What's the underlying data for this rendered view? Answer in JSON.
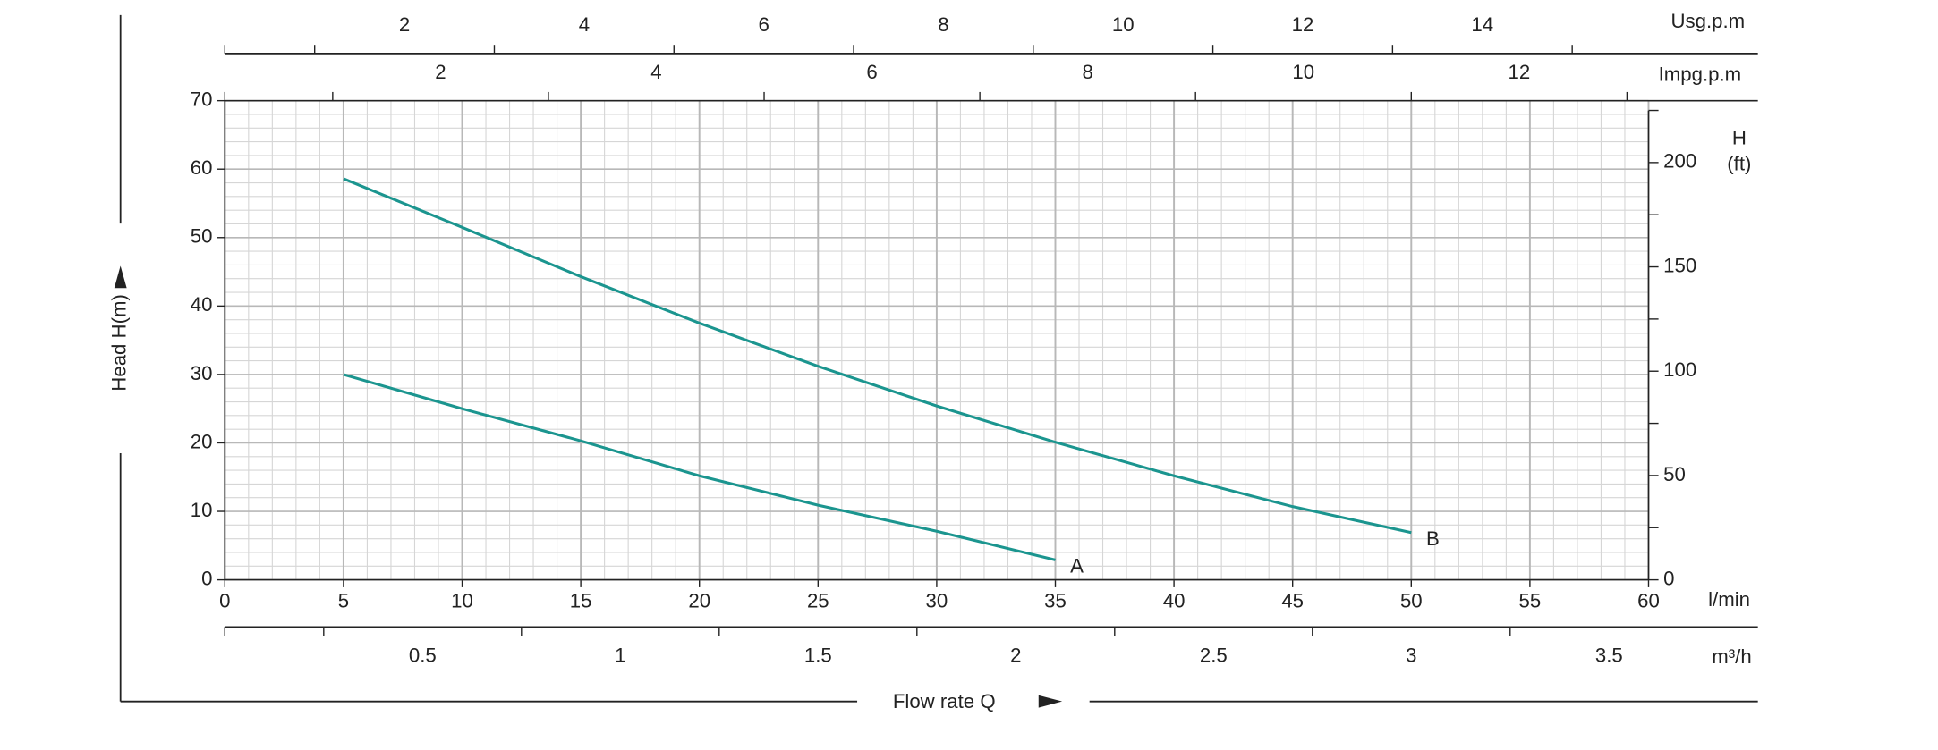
{
  "chart_data": {
    "type": "line",
    "y_label": "Head H(m)",
    "x_label": "Flow rate Q",
    "x_unit": "l/min",
    "xlim": [
      0,
      60
    ],
    "xticks": [
      0,
      5,
      10,
      15,
      20,
      25,
      30,
      35,
      40,
      45,
      50,
      55,
      60
    ],
    "ylim": [
      0,
      70
    ],
    "yticks": [
      0,
      10,
      20,
      30,
      40,
      50,
      60,
      70
    ],
    "y2_label": "H",
    "y2_unit": "(ft)",
    "y2lim": [
      0,
      229.66
    ],
    "y2ticks": [
      0,
      50,
      100,
      150,
      200
    ],
    "y2_minor_ticks": [
      25,
      75,
      125,
      175,
      225
    ],
    "grid": true,
    "x_minor_step": 1,
    "y_minor_step": 2,
    "series": [
      {
        "name": "A",
        "color": "#1b958f",
        "x": [
          5,
          10,
          15,
          20,
          25,
          30,
          35
        ],
        "values": [
          30,
          25,
          20.3,
          15.2,
          10.9,
          7.1,
          2.9
        ]
      },
      {
        "name": "B",
        "color": "#1b958f",
        "x": [
          5,
          10,
          15,
          20,
          25,
          30,
          35,
          40,
          45,
          50
        ],
        "values": [
          58.6,
          51.5,
          44.3,
          37.5,
          31.2,
          25.4,
          20.1,
          15.2,
          10.7,
          6.9
        ]
      }
    ],
    "secondary_x_axes": [
      {
        "label": "Usg.p.m",
        "lim": [
          0,
          15.85
        ],
        "ticks": [
          2,
          4,
          6,
          8,
          10,
          12,
          14
        ],
        "minor_ticks": [
          1,
          3,
          5,
          7,
          9,
          11,
          13,
          15
        ]
      },
      {
        "label": "Impg.p.m",
        "lim": [
          0,
          13.2
        ],
        "ticks": [
          2,
          4,
          6,
          8,
          10,
          12
        ],
        "minor_ticks": [
          1,
          3,
          5,
          7,
          9,
          11,
          13
        ]
      },
      {
        "label": "m³/h",
        "lim": [
          0,
          3.6
        ],
        "ticks": [
          0.5,
          1.0,
          1.5,
          2.0,
          2.5,
          3.0,
          3.5
        ],
        "minor_ticks": [
          0,
          0.25,
          0.75,
          1.25,
          1.75,
          2.25,
          2.75,
          3.25
        ]
      }
    ]
  }
}
